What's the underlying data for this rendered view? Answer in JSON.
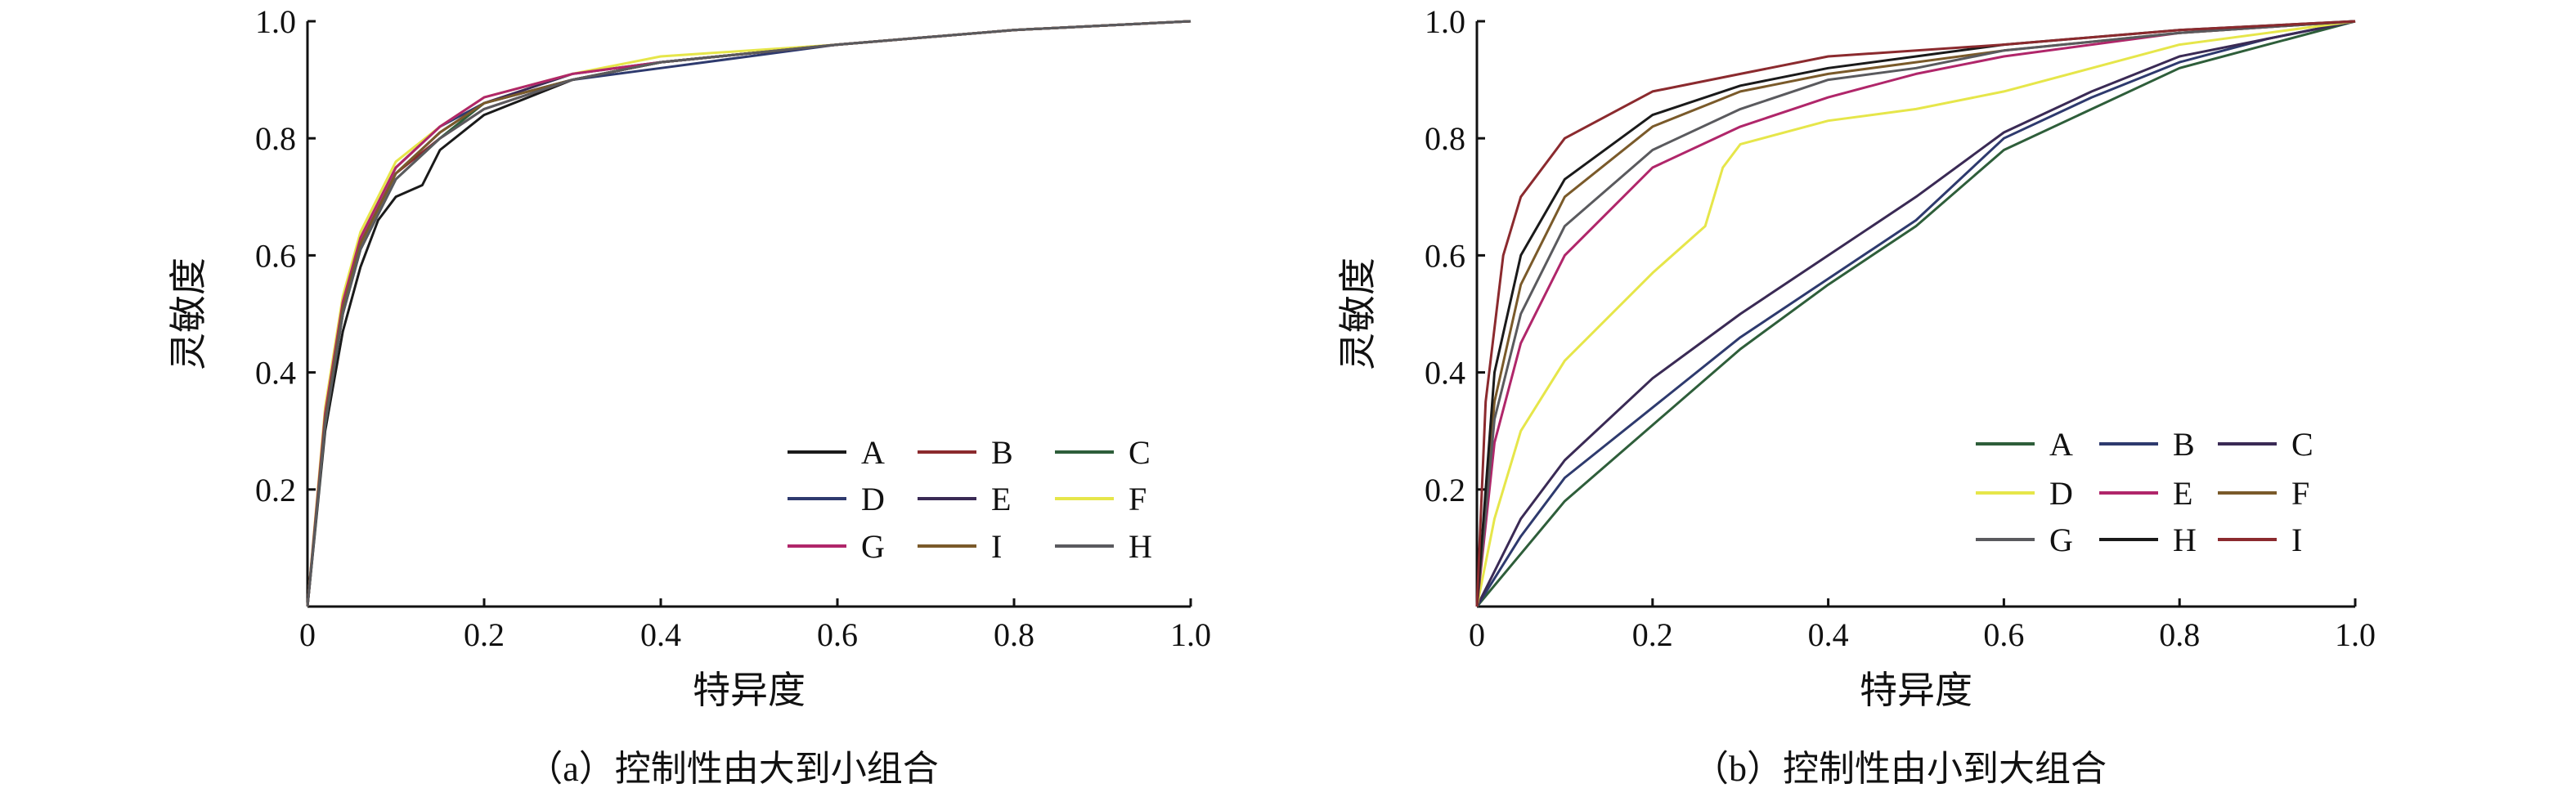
{
  "chart_data": [
    {
      "type": "line",
      "caption": "（a）控制性由大到小组合",
      "xlabel": "特异度",
      "ylabel": "灵敏度",
      "xlim": [
        0,
        1
      ],
      "ylim": [
        0,
        1
      ],
      "xticks": [
        "0",
        "0.2",
        "0.4",
        "0.6",
        "0.8",
        "1.0"
      ],
      "yticks": [
        "0.2",
        "0.4",
        "0.6",
        "0.8",
        "1.0"
      ],
      "legend_position": "bottom-right",
      "series": [
        {
          "name": "A",
          "color": "#1a1a1a",
          "x": [
            0,
            0.02,
            0.04,
            0.06,
            0.08,
            0.1,
            0.13,
            0.15,
            0.2,
            0.3,
            0.4,
            0.6,
            0.8,
            1
          ],
          "y": [
            0,
            0.3,
            0.47,
            0.58,
            0.66,
            0.7,
            0.72,
            0.78,
            0.84,
            0.9,
            0.93,
            0.96,
            0.985,
            1
          ]
        },
        {
          "name": "B",
          "color": "#8b2a2e",
          "x": [
            0,
            0.02,
            0.04,
            0.06,
            0.1,
            0.15,
            0.2,
            0.3,
            0.4,
            0.6,
            0.8,
            1
          ],
          "y": [
            0,
            0.32,
            0.5,
            0.62,
            0.74,
            0.8,
            0.85,
            0.9,
            0.93,
            0.96,
            0.985,
            1
          ]
        },
        {
          "name": "C",
          "color": "#2e5e3a",
          "x": [
            0,
            0.02,
            0.04,
            0.06,
            0.1,
            0.15,
            0.2,
            0.3,
            0.4,
            0.6,
            0.8,
            1
          ],
          "y": [
            0,
            0.31,
            0.5,
            0.61,
            0.73,
            0.8,
            0.86,
            0.9,
            0.93,
            0.96,
            0.985,
            1
          ]
        },
        {
          "name": "D",
          "color": "#2e3a6e",
          "x": [
            0,
            0.02,
            0.04,
            0.06,
            0.1,
            0.15,
            0.2,
            0.3,
            0.4,
            0.5,
            0.6,
            0.8,
            1
          ],
          "y": [
            0,
            0.33,
            0.52,
            0.63,
            0.75,
            0.82,
            0.86,
            0.9,
            0.92,
            0.94,
            0.96,
            0.985,
            1
          ]
        },
        {
          "name": "E",
          "color": "#3a2a55",
          "x": [
            0,
            0.02,
            0.04,
            0.06,
            0.1,
            0.15,
            0.2,
            0.3,
            0.4,
            0.6,
            0.8,
            1
          ],
          "y": [
            0,
            0.32,
            0.51,
            0.62,
            0.74,
            0.81,
            0.86,
            0.91,
            0.93,
            0.96,
            0.985,
            1
          ]
        },
        {
          "name": "F",
          "color": "#e6e64a",
          "x": [
            0,
            0.02,
            0.04,
            0.06,
            0.1,
            0.15,
            0.2,
            0.3,
            0.4,
            0.6,
            0.8,
            1
          ],
          "y": [
            0,
            0.34,
            0.53,
            0.64,
            0.76,
            0.82,
            0.87,
            0.91,
            0.94,
            0.96,
            0.985,
            1
          ]
        },
        {
          "name": "G",
          "color": "#b0266a",
          "x": [
            0,
            0.02,
            0.04,
            0.06,
            0.1,
            0.15,
            0.2,
            0.3,
            0.4,
            0.6,
            0.8,
            1
          ],
          "y": [
            0,
            0.33,
            0.52,
            0.63,
            0.75,
            0.82,
            0.87,
            0.91,
            0.93,
            0.96,
            0.985,
            1
          ]
        },
        {
          "name": "I",
          "color": "#7a5a2a",
          "x": [
            0,
            0.02,
            0.04,
            0.06,
            0.1,
            0.15,
            0.2,
            0.3,
            0.4,
            0.6,
            0.8,
            1
          ],
          "y": [
            0,
            0.32,
            0.51,
            0.62,
            0.74,
            0.81,
            0.86,
            0.9,
            0.93,
            0.96,
            0.985,
            1
          ]
        },
        {
          "name": "H",
          "color": "#5a5a5e",
          "x": [
            0,
            0.02,
            0.04,
            0.06,
            0.1,
            0.15,
            0.2,
            0.3,
            0.4,
            0.6,
            0.8,
            1
          ],
          "y": [
            0,
            0.31,
            0.5,
            0.61,
            0.73,
            0.8,
            0.85,
            0.9,
            0.93,
            0.96,
            0.985,
            1
          ]
        }
      ]
    },
    {
      "type": "line",
      "caption": "（b）控制性由小到大组合",
      "xlabel": "特异度",
      "ylabel": "灵敏度",
      "xlim": [
        0,
        1
      ],
      "ylim": [
        0,
        1
      ],
      "xticks": [
        "0",
        "0.2",
        "0.4",
        "0.6",
        "0.8",
        "1.0"
      ],
      "yticks": [
        "0.2",
        "0.4",
        "0.6",
        "0.8",
        "1.0"
      ],
      "legend_position": "bottom-right",
      "series": [
        {
          "name": "A",
          "color": "#2e5e3a",
          "x": [
            0,
            0.05,
            0.1,
            0.2,
            0.3,
            0.4,
            0.5,
            0.6,
            0.7,
            0.8,
            0.9,
            1
          ],
          "y": [
            0,
            0.09,
            0.18,
            0.31,
            0.44,
            0.55,
            0.65,
            0.78,
            0.85,
            0.92,
            0.96,
            1
          ]
        },
        {
          "name": "B",
          "color": "#2e3a6e",
          "x": [
            0,
            0.05,
            0.1,
            0.2,
            0.3,
            0.4,
            0.5,
            0.6,
            0.7,
            0.8,
            0.9,
            1
          ],
          "y": [
            0,
            0.12,
            0.22,
            0.34,
            0.46,
            0.56,
            0.66,
            0.8,
            0.87,
            0.93,
            0.97,
            1
          ]
        },
        {
          "name": "C",
          "color": "#3a2a55",
          "x": [
            0,
            0.05,
            0.1,
            0.2,
            0.3,
            0.4,
            0.5,
            0.6,
            0.7,
            0.8,
            0.9,
            1
          ],
          "y": [
            0,
            0.15,
            0.25,
            0.39,
            0.5,
            0.6,
            0.7,
            0.81,
            0.88,
            0.94,
            0.97,
            1
          ]
        },
        {
          "name": "D",
          "color": "#e6e64a",
          "x": [
            0,
            0.02,
            0.05,
            0.1,
            0.2,
            0.26,
            0.28,
            0.3,
            0.4,
            0.5,
            0.6,
            0.7,
            0.8,
            0.9,
            1
          ],
          "y": [
            0,
            0.15,
            0.3,
            0.42,
            0.57,
            0.65,
            0.75,
            0.79,
            0.83,
            0.85,
            0.88,
            0.92,
            0.96,
            0.98,
            1
          ]
        },
        {
          "name": "E",
          "color": "#b0266a",
          "x": [
            0,
            0.02,
            0.05,
            0.1,
            0.2,
            0.3,
            0.4,
            0.5,
            0.6,
            0.8,
            1
          ],
          "y": [
            0,
            0.28,
            0.45,
            0.6,
            0.75,
            0.82,
            0.87,
            0.91,
            0.94,
            0.98,
            1
          ]
        },
        {
          "name": "F",
          "color": "#7a5a2a",
          "x": [
            0,
            0.02,
            0.05,
            0.1,
            0.2,
            0.3,
            0.4,
            0.5,
            0.6,
            0.8,
            1
          ],
          "y": [
            0,
            0.35,
            0.55,
            0.7,
            0.82,
            0.88,
            0.91,
            0.93,
            0.95,
            0.98,
            1
          ]
        },
        {
          "name": "G",
          "color": "#5a5a5e",
          "x": [
            0,
            0.02,
            0.05,
            0.1,
            0.2,
            0.3,
            0.4,
            0.5,
            0.6,
            0.8,
            1
          ],
          "y": [
            0,
            0.32,
            0.5,
            0.65,
            0.78,
            0.85,
            0.9,
            0.92,
            0.95,
            0.98,
            1
          ]
        },
        {
          "name": "H",
          "color": "#1a1a1a",
          "x": [
            0,
            0.02,
            0.05,
            0.1,
            0.2,
            0.3,
            0.4,
            0.5,
            0.6,
            0.8,
            1
          ],
          "y": [
            0,
            0.4,
            0.6,
            0.73,
            0.84,
            0.89,
            0.92,
            0.94,
            0.96,
            0.985,
            1
          ]
        },
        {
          "name": "I",
          "color": "#8b2a2e",
          "x": [
            0,
            0.01,
            0.03,
            0.05,
            0.1,
            0.2,
            0.3,
            0.4,
            0.6,
            0.8,
            1
          ],
          "y": [
            0,
            0.35,
            0.6,
            0.7,
            0.8,
            0.88,
            0.91,
            0.94,
            0.96,
            0.985,
            1
          ]
        }
      ]
    }
  ]
}
